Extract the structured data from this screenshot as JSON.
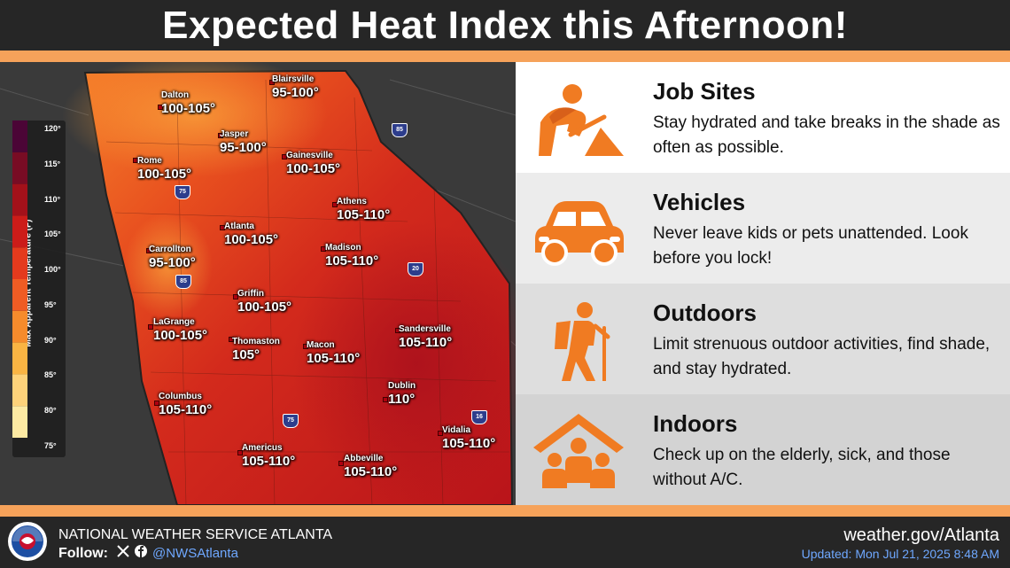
{
  "title": "Expected Heat Index this Afternoon!",
  "legend": {
    "title": "Max Apparent Temperature (F)",
    "ticks": [
      "120°",
      "115°",
      "110°",
      "105°",
      "100°",
      "95°",
      "90°",
      "85°",
      "80°",
      "75°"
    ],
    "colors": [
      "#fdeaa3",
      "#fdd27a",
      "#f9b443",
      "#f58b2c",
      "#ef5c24",
      "#e43a1d",
      "#cc1c19",
      "#a3111a",
      "#780c24",
      "#4b0536"
    ]
  },
  "cities": [
    {
      "name": "Blairsville",
      "range": "95-100°"
    },
    {
      "name": "Dalton",
      "range": "100-105°"
    },
    {
      "name": "Jasper",
      "range": "95-100°"
    },
    {
      "name": "Rome",
      "range": "100-105°"
    },
    {
      "name": "Gainesville",
      "range": "100-105°"
    },
    {
      "name": "Athens",
      "range": "105-110°"
    },
    {
      "name": "Atlanta",
      "range": "100-105°"
    },
    {
      "name": "Carrollton",
      "range": "95-100°"
    },
    {
      "name": "Madison",
      "range": "105-110°"
    },
    {
      "name": "Griffin",
      "range": "100-105°"
    },
    {
      "name": "LaGrange",
      "range": "100-105°"
    },
    {
      "name": "Sandersville",
      "range": "105-110°"
    },
    {
      "name": "Thomaston",
      "range": "105°"
    },
    {
      "name": "Macon",
      "range": "105-110°"
    },
    {
      "name": "Dublin",
      "range": "110°"
    },
    {
      "name": "Columbus",
      "range": "105-110°"
    },
    {
      "name": "Vidalia",
      "range": "105-110°"
    },
    {
      "name": "Americus",
      "range": "105-110°"
    },
    {
      "name": "Abbeville",
      "range": "105-110°"
    }
  ],
  "interstates": [
    "85",
    "75",
    "85",
    "20",
    "75",
    "16"
  ],
  "panels": [
    {
      "heading": "Job Sites",
      "text": "Stay hydrated and take breaks in the shade as often as possible.",
      "icon": "construction-worker-icon",
      "bg": "#ffffff"
    },
    {
      "heading": "Vehicles",
      "text": "Never leave kids or pets unattended. Look before you lock!",
      "icon": "car-icon",
      "bg": "#ececec"
    },
    {
      "heading": "Outdoors",
      "text": "Limit strenuous outdoor activities, find shade, and stay hydrated.",
      "icon": "hiker-icon",
      "bg": "#dedede"
    },
    {
      "heading": "Indoors",
      "text": "Check up on the elderly, sick, and those without A/C.",
      "icon": "house-family-icon",
      "bg": "#d3d3d3"
    }
  ],
  "icon_color": "#f07b22",
  "footer": {
    "office": "NATIONAL WEATHER SERVICE ATLANTA",
    "follow_label": "Follow:",
    "handle": "@NWSAtlanta",
    "website": "weather.gov/Atlanta",
    "updated": "Updated: Mon Jul 21, 2025 8:48 AM"
  }
}
